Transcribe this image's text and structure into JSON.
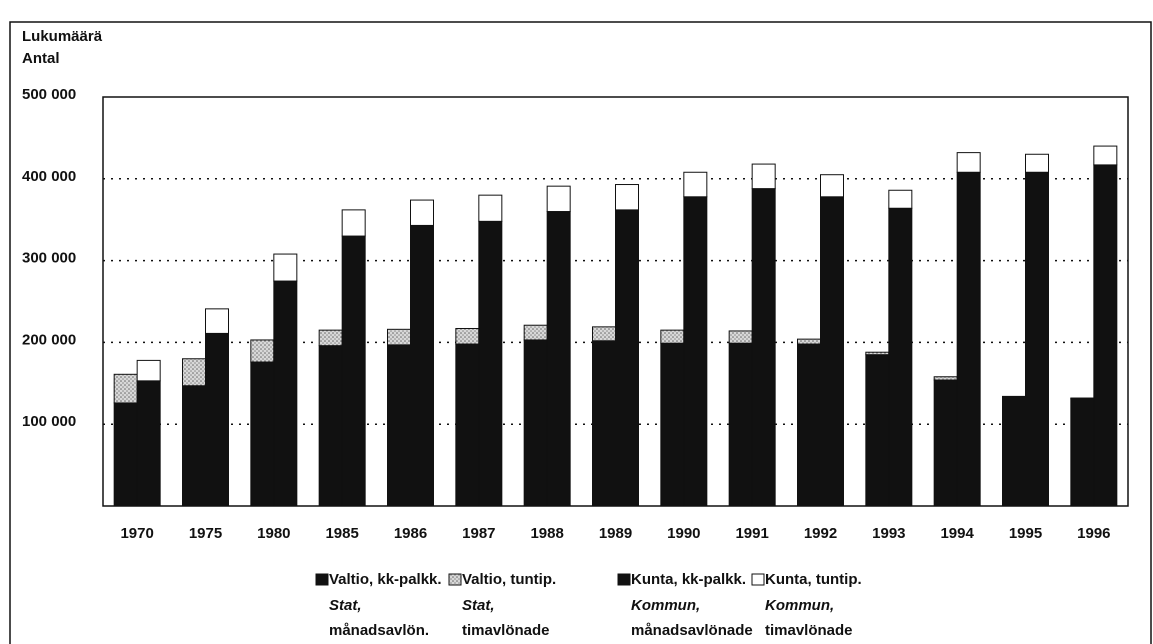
{
  "chart_data": {
    "type": "bar",
    "y_label": [
      "Lukumäärä",
      "Antal"
    ],
    "categories": [
      "1970",
      "1975",
      "1980",
      "1985",
      "1986",
      "1987",
      "1988",
      "1989",
      "1990",
      "1991",
      "1992",
      "1993",
      "1994",
      "1995",
      "1996"
    ],
    "series": [
      {
        "name": "Valtio, kk-palkk.",
        "name_sv": [
          "Stat,",
          "månadsavlön."
        ],
        "color": "#111111",
        "stack": 0,
        "values": [
          126000,
          147000,
          176000,
          196000,
          197000,
          198000,
          203000,
          202000,
          199000,
          199000,
          198000,
          185000,
          154000,
          133000,
          131000
        ]
      },
      {
        "name": "Valtio, tuntip.",
        "name_sv": [
          "Stat,",
          "timavlönade"
        ],
        "color": "#bdbdbd",
        "stack": 0,
        "values": [
          35000,
          33000,
          27000,
          19000,
          19000,
          19000,
          18000,
          17000,
          16000,
          15000,
          6000,
          3000,
          4000,
          1000,
          1000
        ]
      },
      {
        "name": "Kunta, kk-palkk.",
        "name_sv": [
          "Kommun,",
          "månadsavlönade"
        ],
        "color": "#111111",
        "stack": 1,
        "values": [
          153000,
          211000,
          275000,
          330000,
          343000,
          348000,
          360000,
          362000,
          378000,
          388000,
          378000,
          364000,
          408000,
          408000,
          417000
        ]
      },
      {
        "name": "Kunta, tuntip.",
        "name_sv": [
          "Kommun,",
          "timavlönade"
        ],
        "color": "#ffffff",
        "stack": 1,
        "values": [
          25000,
          30000,
          33000,
          32000,
          31000,
          32000,
          31000,
          31000,
          30000,
          30000,
          27000,
          22000,
          24000,
          22000,
          23000
        ]
      }
    ],
    "ylim": [
      0,
      500000
    ],
    "yticks": [
      {
        "value": 100000,
        "label": "100 000"
      },
      {
        "value": 200000,
        "label": "200 000"
      },
      {
        "value": 300000,
        "label": "300 000"
      },
      {
        "value": 400000,
        "label": "400 000"
      },
      {
        "value": 500000,
        "label": "500 000"
      }
    ],
    "grid": true
  }
}
